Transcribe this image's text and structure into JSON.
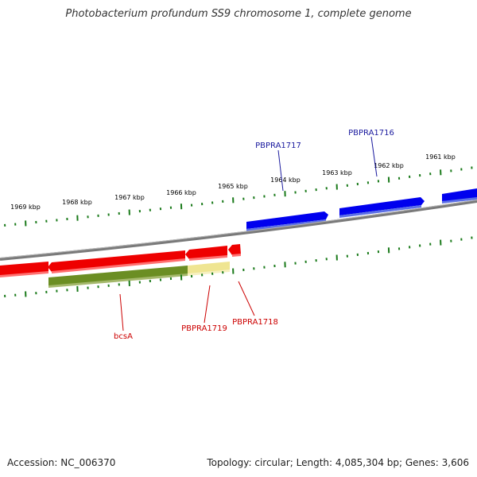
{
  "header": {
    "title": "Photobacterium profundum SS9 chromosome 1, complete genome"
  },
  "footer": {
    "accession": "Accession: NC_006370",
    "summary": "Topology: circular; Length: 4,085,304 bp; Genes: 3,606"
  },
  "colors": {
    "forward_gene": "#0000ee",
    "reverse_gene": "#ee0000",
    "rna_primary": "#6b8e23",
    "rna_secondary": "#efe592",
    "backbone": "#808080",
    "ticks": "#1a7a1a",
    "forward_label": "#1a1a9e",
    "reverse_label": "#cc0000"
  },
  "ruler": {
    "labels": [
      "1969 kbp",
      "1968 kbp",
      "1967 kbp",
      "1966 kbp",
      "1965 kbp",
      "1964 kbp",
      "1963 kbp",
      "1962 kbp",
      "1961 kbp"
    ]
  },
  "genes": {
    "forward": [
      {
        "name": "PBPRA1717",
        "labeled": true
      },
      {
        "name": "PBPRA1716",
        "labeled": true
      },
      {
        "name": "",
        "labeled": false
      }
    ],
    "reverse": [
      {
        "name": "bcsA",
        "labeled": true
      },
      {
        "name": "PBPRA1719",
        "labeled": true
      },
      {
        "name": "PBPRA1718",
        "labeled": true
      }
    ]
  }
}
